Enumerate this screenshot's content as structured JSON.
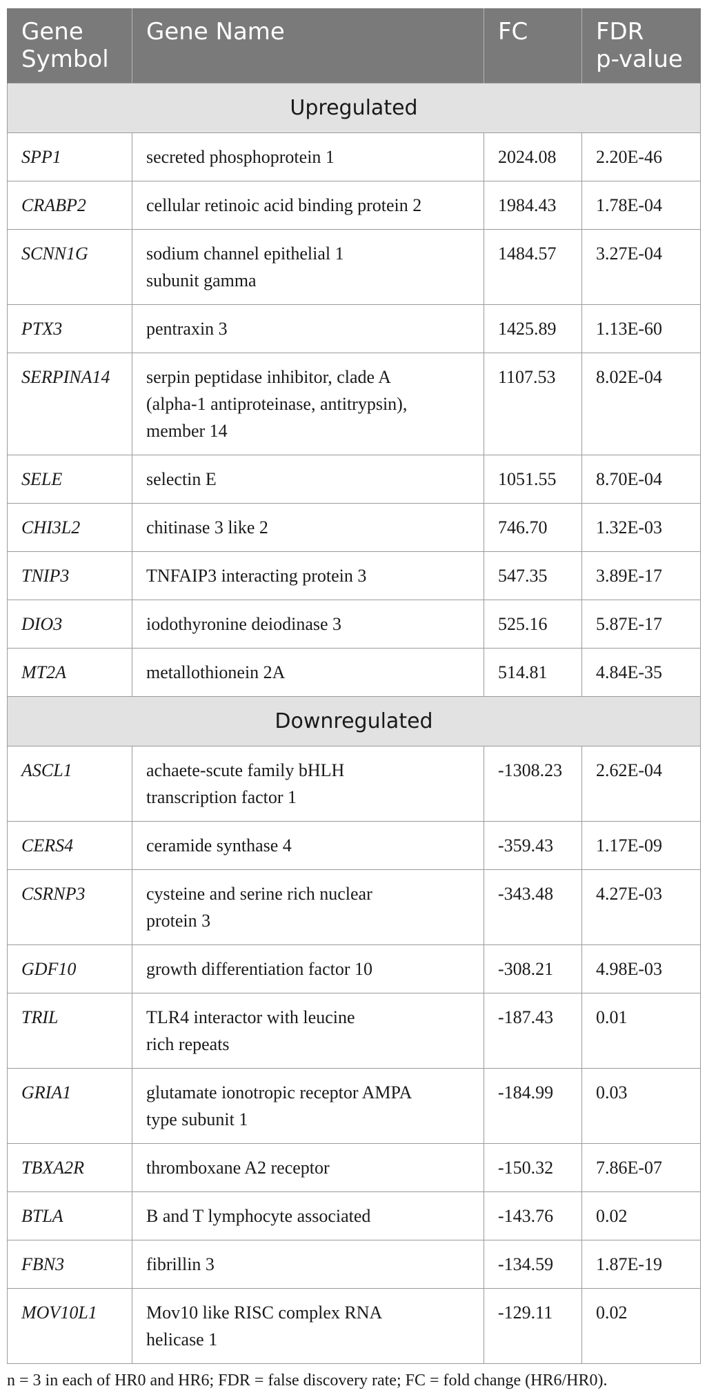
{
  "headers": {
    "symbol": "Gene Symbol",
    "name": "Gene Name",
    "fc": "FC",
    "fdr": "FDR p-value"
  },
  "sections": [
    {
      "label": "Upregulated",
      "rows": [
        {
          "symbol": "SPP1",
          "name": "secreted phosphoprotein 1",
          "fc": "2024.08",
          "fdr": "2.20E-46"
        },
        {
          "symbol": "CRABP2",
          "name": "cellular retinoic acid binding protein 2",
          "fc": "1984.43",
          "fdr": "1.78E-04"
        },
        {
          "symbol": "SCNN1G",
          "name": "sodium channel epithelial 1\nsubunit gamma",
          "fc": "1484.57",
          "fdr": "3.27E-04"
        },
        {
          "symbol": "PTX3",
          "name": "pentraxin 3",
          "fc": "1425.89",
          "fdr": "1.13E-60"
        },
        {
          "symbol": "SERPINA14",
          "name": "serpin peptidase inhibitor, clade A\n(alpha-1 antiproteinase, antitrypsin),\nmember 14",
          "fc": "1107.53",
          "fdr": "8.02E-04"
        },
        {
          "symbol": "SELE",
          "name": "selectin E",
          "fc": "1051.55",
          "fdr": "8.70E-04"
        },
        {
          "symbol": "CHI3L2",
          "name": "chitinase 3 like 2",
          "fc": "746.70",
          "fdr": "1.32E-03"
        },
        {
          "symbol": "TNIP3",
          "name": "TNFAIP3 interacting protein 3",
          "fc": "547.35",
          "fdr": "3.89E-17"
        },
        {
          "symbol": "DIO3",
          "name": "iodothyronine deiodinase 3",
          "fc": "525.16",
          "fdr": "5.87E-17"
        },
        {
          "symbol": "MT2A",
          "name": "metallothionein 2A",
          "fc": "514.81",
          "fdr": "4.84E-35"
        }
      ]
    },
    {
      "label": "Downregulated",
      "rows": [
        {
          "symbol": "ASCL1",
          "name": "achaete-scute family bHLH\ntranscription factor 1",
          "fc": "-1308.23",
          "fdr": "2.62E-04"
        },
        {
          "symbol": "CERS4",
          "name": "ceramide synthase 4",
          "fc": "-359.43",
          "fdr": "1.17E-09"
        },
        {
          "symbol": "CSRNP3",
          "name": "cysteine and serine rich nuclear\nprotein 3",
          "fc": "-343.48",
          "fdr": "4.27E-03"
        },
        {
          "symbol": "GDF10",
          "name": "growth differentiation factor 10",
          "fc": "-308.21",
          "fdr": "4.98E-03"
        },
        {
          "symbol": "TRIL",
          "name": "TLR4 interactor with leucine\nrich repeats",
          "fc": "-187.43",
          "fdr": "0.01"
        },
        {
          "symbol": "GRIA1",
          "name": "glutamate ionotropic receptor AMPA\ntype subunit 1",
          "fc": "-184.99",
          "fdr": "0.03"
        },
        {
          "symbol": "TBXA2R",
          "name": "thromboxane A2 receptor",
          "fc": "-150.32",
          "fdr": "7.86E-07"
        },
        {
          "symbol": "BTLA",
          "name": "B and T lymphocyte associated",
          "fc": "-143.76",
          "fdr": "0.02"
        },
        {
          "symbol": "FBN3",
          "name": "fibrillin 3",
          "fc": "-134.59",
          "fdr": "1.87E-19"
        },
        {
          "symbol": "MOV10L1",
          "name": "Mov10 like RISC complex RNA\nhelicase 1",
          "fc": "-129.11",
          "fdr": "0.02"
        }
      ]
    }
  ],
  "footnote": "n = 3 in each of HR0 and HR6; FDR = false discovery rate; FC = fold change (HR6/HR0)."
}
